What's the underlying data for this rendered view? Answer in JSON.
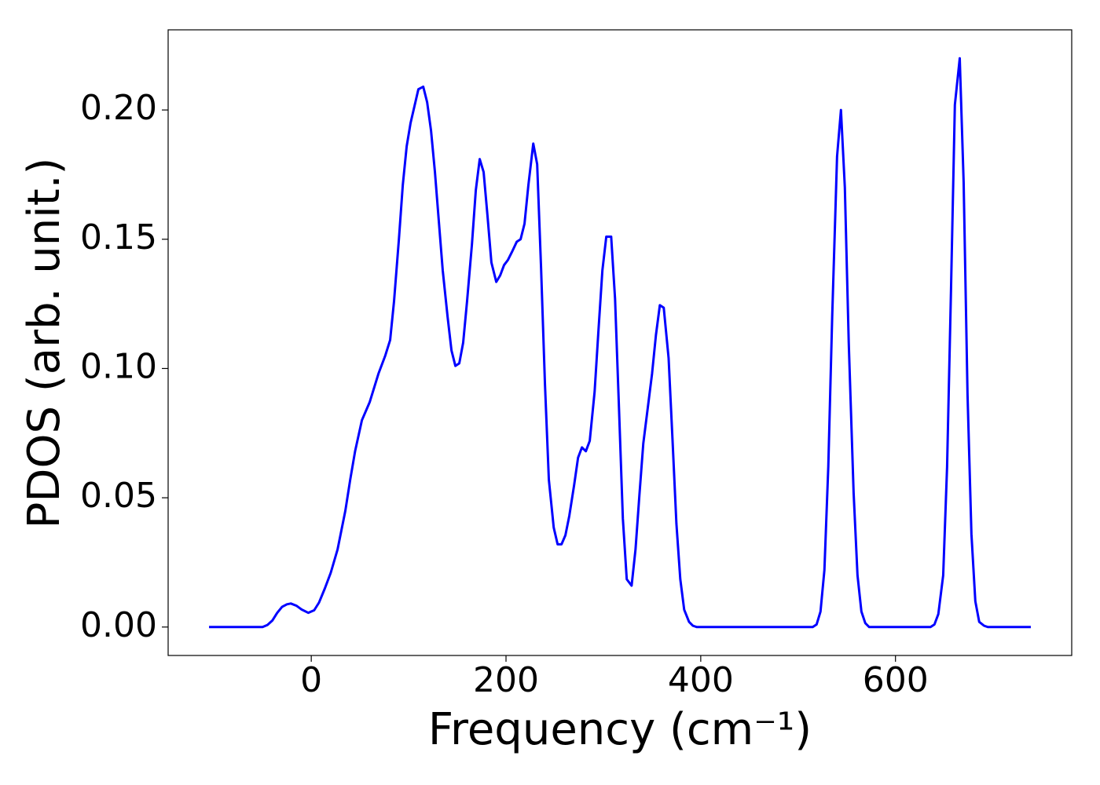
{
  "chart_data": {
    "type": "line",
    "xlabel": "Frequency (cm⁻¹)",
    "ylabel": "PDOS (arb. unit.)",
    "color": "#0000ff",
    "xlim": [
      -147,
      781
    ],
    "ylim": [
      -0.011,
      0.231
    ],
    "xticks": [
      0,
      200,
      400,
      600
    ],
    "yticks": [
      {
        "value": 0,
        "label": "0.00"
      },
      {
        "value": 0.05,
        "label": "0.05"
      },
      {
        "value": 0.1,
        "label": "0.10"
      },
      {
        "value": 0.15,
        "label": "0.15"
      },
      {
        "value": 0.2,
        "label": "0.20"
      }
    ],
    "grid": false,
    "x": [
      -105,
      -50,
      -45,
      -40,
      -35,
      -30,
      -25,
      -21,
      -15,
      -10,
      -3,
      3,
      8,
      14,
      20,
      27,
      35,
      40,
      45,
      52,
      60,
      69,
      76,
      81,
      85,
      90,
      94,
      98,
      102,
      110,
      115,
      119,
      123,
      127,
      131,
      135,
      140,
      144,
      148,
      152,
      156,
      160,
      165,
      169,
      173,
      177,
      181,
      185,
      190,
      194,
      198,
      202,
      206,
      211,
      215,
      219,
      223,
      228,
      232,
      236,
      240,
      244,
      249,
      253,
      257,
      261,
      265,
      270,
      274,
      278,
      282,
      286,
      291,
      295,
      299,
      303,
      308,
      312,
      316,
      320,
      324,
      329,
      333,
      337,
      341,
      346,
      350,
      354,
      358,
      362,
      367,
      371,
      375,
      379,
      383,
      388,
      392,
      396,
      515,
      519,
      523,
      527,
      531,
      535,
      540,
      544,
      548,
      552,
      557,
      561,
      565,
      569,
      573,
      636,
      640,
      644,
      649,
      653,
      657,
      661,
      666,
      670,
      674,
      678,
      682,
      686,
      691,
      695,
      739
    ],
    "values": [
      0,
      0,
      0.0008,
      0.0025,
      0.0055,
      0.0078,
      0.0088,
      0.0091,
      0.0082,
      0.0068,
      0.0055,
      0.0065,
      0.0095,
      0.015,
      0.021,
      0.03,
      0.045,
      0.057,
      0.068,
      0.08,
      0.087,
      0.098,
      0.105,
      0.111,
      0.126,
      0.15,
      0.171,
      0.186,
      0.195,
      0.208,
      0.209,
      0.203,
      0.192,
      0.176,
      0.157,
      0.138,
      0.12,
      0.107,
      0.101,
      0.102,
      0.11,
      0.126,
      0.148,
      0.169,
      0.181,
      0.176,
      0.159,
      0.141,
      0.1335,
      0.136,
      0.14,
      0.142,
      0.145,
      0.149,
      0.15,
      0.156,
      0.171,
      0.187,
      0.179,
      0.139,
      0.094,
      0.057,
      0.0385,
      0.032,
      0.032,
      0.0355,
      0.043,
      0.055,
      0.0655,
      0.0695,
      0.068,
      0.072,
      0.091,
      0.115,
      0.138,
      0.151,
      0.151,
      0.127,
      0.085,
      0.042,
      0.0185,
      0.016,
      0.03,
      0.051,
      0.071,
      0.086,
      0.098,
      0.113,
      0.1245,
      0.1235,
      0.104,
      0.0725,
      0.04,
      0.0185,
      0.0067,
      0.002,
      0.0005,
      0,
      0,
      0.001,
      0.006,
      0.022,
      0.062,
      0.12,
      0.182,
      0.2,
      0.17,
      0.11,
      0.052,
      0.02,
      0.006,
      0.0015,
      0,
      0,
      0.001,
      0.005,
      0.02,
      0.062,
      0.13,
      0.202,
      0.22,
      0.172,
      0.09,
      0.036,
      0.01,
      0.002,
      0.0005,
      0,
      0
    ]
  }
}
